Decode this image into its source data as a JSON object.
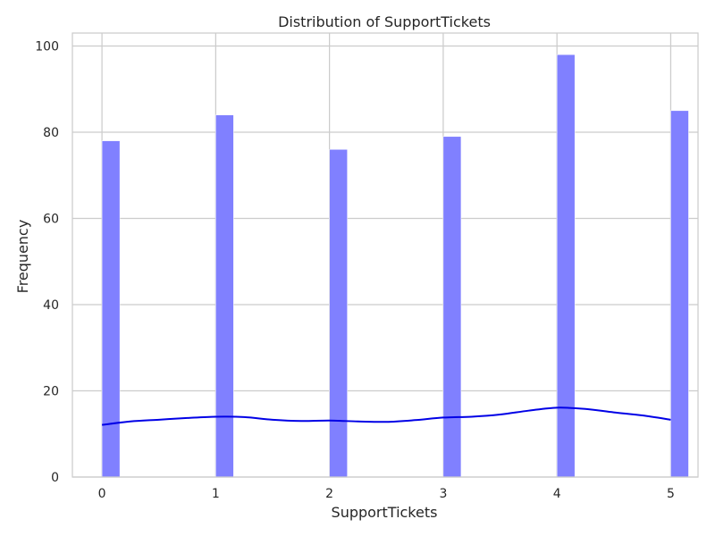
{
  "chart_data": {
    "type": "bar",
    "title": "Distribution of SupportTickets",
    "xlabel": "SupportTickets",
    "ylabel": "Frequency",
    "x": [
      0,
      1,
      2,
      3,
      4,
      5
    ],
    "values": [
      78,
      84,
      76,
      79,
      98,
      85
    ],
    "kde_x": [
      0,
      0.25,
      0.5,
      0.75,
      1,
      1.25,
      1.5,
      1.75,
      2,
      2.25,
      2.5,
      2.75,
      3,
      3.25,
      3.5,
      3.75,
      4,
      4.25,
      4.5,
      4.75,
      5
    ],
    "kde_y": [
      12.1,
      12.9,
      13.3,
      13.7,
      14.0,
      13.9,
      13.3,
      13.0,
      13.1,
      12.9,
      12.8,
      13.2,
      13.8,
      14.0,
      14.5,
      15.4,
      16.1,
      15.8,
      15.0,
      14.3,
      13.3
    ],
    "xlim": [
      -0.26,
      5.24
    ],
    "ylim": [
      0,
      103
    ],
    "xticks": [
      0,
      1,
      2,
      3,
      4,
      5
    ],
    "yticks": [
      0,
      20,
      40,
      60,
      80,
      100
    ],
    "grid": true,
    "bar_color": "#8080ff",
    "kde_color": "#0000e6",
    "grid_color": "#cccccc",
    "frame_color": "#cccccc"
  }
}
